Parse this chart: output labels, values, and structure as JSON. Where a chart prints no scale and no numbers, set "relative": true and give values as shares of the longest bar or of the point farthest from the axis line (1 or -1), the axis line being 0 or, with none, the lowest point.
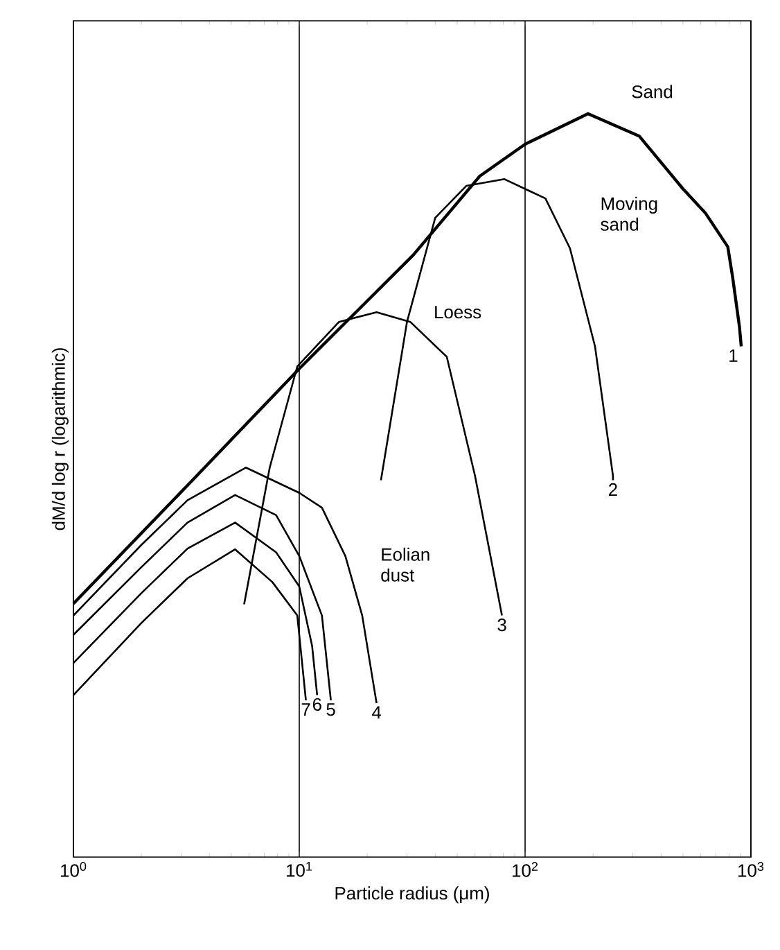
{
  "chart_data": {
    "type": "line",
    "relative": true,
    "log": "x",
    "grid": "x",
    "marker": "none",
    "line_style": "solid",
    "xlabel": "Particle radius (μm)",
    "ylabel": "dM/d log r (logarithmic)",
    "xlim": [
      1,
      1000
    ],
    "xticks": [
      {
        "value": 1,
        "label": "10$^{0}$"
      },
      {
        "value": 10,
        "label": "10$^{1}$"
      },
      {
        "value": 100,
        "label": "10$^{2}$"
      },
      {
        "value": 1000,
        "label": "10$^{3}$"
      }
    ],
    "series": [
      {
        "name": "1",
        "color": "#000000",
        "x": [
          1,
          3.2,
          10,
          32,
          63,
          100,
          190,
          320,
          500,
          630,
          790,
          830,
          890,
          906
        ],
        "values": [
          0.341,
          0.5,
          0.657,
          0.81,
          0.916,
          0.959,
          1.0,
          0.97,
          0.899,
          0.866,
          0.821,
          0.78,
          0.713,
          0.687
        ]
      },
      {
        "name": "2",
        "color": "#000000",
        "x": [
          23,
          30,
          40,
          55,
          81,
          123,
          158,
          204,
          245,
          245
        ],
        "values": [
          0.507,
          0.72,
          0.86,
          0.903,
          0.912,
          0.886,
          0.819,
          0.687,
          0.513,
          0.507
        ]
      },
      {
        "name": "3",
        "color": "#000000",
        "x": [
          5.7,
          7.4,
          9.8,
          15,
          22,
          31,
          45,
          60,
          79
        ],
        "values": [
          0.34,
          0.524,
          0.66,
          0.72,
          0.733,
          0.72,
          0.673,
          0.513,
          0.325
        ]
      },
      {
        "name": "4",
        "color": "#000000",
        "x": [
          1,
          2,
          3.2,
          5.8,
          10,
          12.6,
          16,
          19,
          22
        ],
        "values": [
          0.325,
          0.42,
          0.48,
          0.524,
          0.49,
          0.47,
          0.405,
          0.325,
          0.207
        ]
      },
      {
        "name": "5",
        "color": "#000000",
        "x": [
          1,
          2,
          3.2,
          5.2,
          7.9,
          10,
          12.6,
          13.8
        ],
        "values": [
          0.299,
          0.39,
          0.45,
          0.487,
          0.46,
          0.405,
          0.325,
          0.211
        ]
      },
      {
        "name": "6",
        "color": "#000000",
        "x": [
          1,
          2,
          3.2,
          5.2,
          7.9,
          10,
          11.4,
          12
        ],
        "values": [
          0.261,
          0.355,
          0.415,
          0.45,
          0.41,
          0.364,
          0.284,
          0.218
        ]
      },
      {
        "name": "7",
        "color": "#000000",
        "x": [
          1,
          2,
          3.2,
          5.2,
          7.6,
          9.8,
          10.7
        ],
        "values": [
          0.218,
          0.315,
          0.375,
          0.414,
          0.37,
          0.325,
          0.211
        ]
      }
    ],
    "annotations": [
      "Sand",
      "Moving sand",
      "Loess",
      "Eolian dust"
    ]
  }
}
